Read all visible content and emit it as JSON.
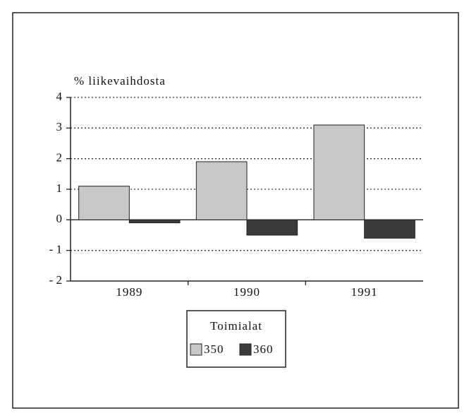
{
  "chart_data": {
    "type": "bar",
    "y_label": "% liikevaihdosta",
    "categories": [
      "1989",
      "1990",
      "1991"
    ],
    "series": [
      {
        "name": "350",
        "color": "#c8c8c8",
        "values": [
          1.1,
          1.9,
          3.1
        ]
      },
      {
        "name": "360",
        "color": "#3a3a3a",
        "values": [
          -0.1,
          -0.5,
          -0.6
        ]
      }
    ],
    "legend_title": "Toimialat",
    "ylim": [
      -2,
      4
    ],
    "yticks": [
      {
        "value": -2,
        "label": "- 2"
      },
      {
        "value": -1,
        "label": "- 1"
      },
      0,
      1,
      2,
      3,
      4
    ],
    "grid": true
  }
}
